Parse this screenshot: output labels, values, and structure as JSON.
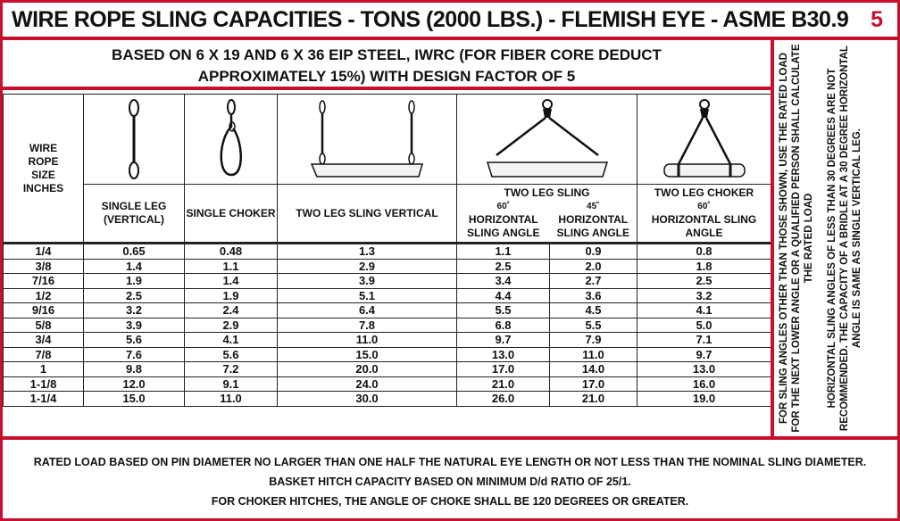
{
  "title": "WIRE ROPE SLING CAPACITIES - TONS (2000 LBS.) - FLEMISH EYE - ASME B30.9",
  "page_number": "5",
  "subtitle_line1": "BASED ON 6 X 19 AND 6 X 36 EIP STEEL, IWRC (FOR FIBER CORE DEDUCT",
  "subtitle_line2": "APPROXIMATELY 15%) WITH DESIGN FACTOR OF 5",
  "side_note": {
    "para1": "FOR SLING ANGLES OTHER THAN THOSE SHOWN, USE THE RATED LOAD FOR THE NEXT LOWER ANGLE OR A QUALIFIED PERSON SHALL CALCULATE THE RATED LOAD",
    "para2": "HORIZONTAL SLING ANGLES OF LESS THAN 30 DEGREES ARE NOT RECOMMENDED. THE CAPACITY OF A BRIDLE AT A 30 DEGREE HORIZONTAL ANGLE IS SAME AS SINGLE VERTICAL LEG."
  },
  "table": {
    "size_header": "WIRE ROPE SIZE INCHES",
    "col_single_leg": "SINGLE LEG (VERTICAL)",
    "col_single_choker": "SINGLE CHOKER",
    "col_two_leg_vertical": "TWO LEG SLING VERTICAL",
    "col_two_leg_sling": "TWO LEG SLING",
    "deg_60": "60˚",
    "deg_45": "45˚",
    "col_60_horizontal": "HORIZONTAL SLING ANGLE",
    "col_45_horizontal": "HORIZONTAL SLING ANGLE",
    "col_two_leg_choker": "TWO LEG CHOKER",
    "choker_deg": "60˚",
    "col_choker_horizontal": "HORIZONTAL SLING ANGLE",
    "rows": [
      [
        "1/4",
        "0.65",
        "0.48",
        "1.3",
        "1.1",
        "0.9",
        "0.8"
      ],
      [
        "3/8",
        "1.4",
        "1.1",
        "2.9",
        "2.5",
        "2.0",
        "1.8"
      ],
      [
        "7/16",
        "1.9",
        "1.4",
        "3.9",
        "3.4",
        "2.7",
        "2.5"
      ],
      [
        "1/2",
        "2.5",
        "1.9",
        "5.1",
        "4.4",
        "3.6",
        "3.2"
      ],
      [
        "9/16",
        "3.2",
        "2.4",
        "6.4",
        "5.5",
        "4.5",
        "4.1"
      ],
      [
        "5/8",
        "3.9",
        "2.9",
        "7.8",
        "6.8",
        "5.5",
        "5.0"
      ],
      [
        "3/4",
        "5.6",
        "4.1",
        "11.0",
        "9.7",
        "7.9",
        "7.1"
      ],
      [
        "7/8",
        "7.6",
        "5.6",
        "15.0",
        "13.0",
        "11.0",
        "9.7"
      ],
      [
        "1",
        "9.8",
        "7.2",
        "20.0",
        "17.0",
        "14.0",
        "13.0"
      ],
      [
        "1-1/8",
        "12.0",
        "9.1",
        "24.0",
        "21.0",
        "17.0",
        "16.0"
      ],
      [
        "1-1/4",
        "15.0",
        "11.0",
        "30.0",
        "26.0",
        "21.0",
        "19.0"
      ]
    ]
  },
  "footer": {
    "line1": "RATED LOAD BASED ON PIN DIAMETER NO LARGER THAN ONE HALF THE NATURAL EYE LENGTH OR NOT LESS THAN THE NOMINAL SLING DIAMETER.",
    "line2": "BASKET HITCH CAPACITY BASED ON MINIMUM D/d RATIO OF 25/1.",
    "line3": "FOR CHOKER HITCHES, THE ANGLE OF CHOKE SHALL BE 120 DEGREES OR GREATER."
  },
  "colors": {
    "accent": "#c8102e"
  },
  "icons": [
    "single-leg-sling-icon",
    "single-choker-sling-icon",
    "two-leg-vertical-sling-icon",
    "two-leg-bridle-sling-icon",
    "two-leg-choker-sling-icon"
  ]
}
